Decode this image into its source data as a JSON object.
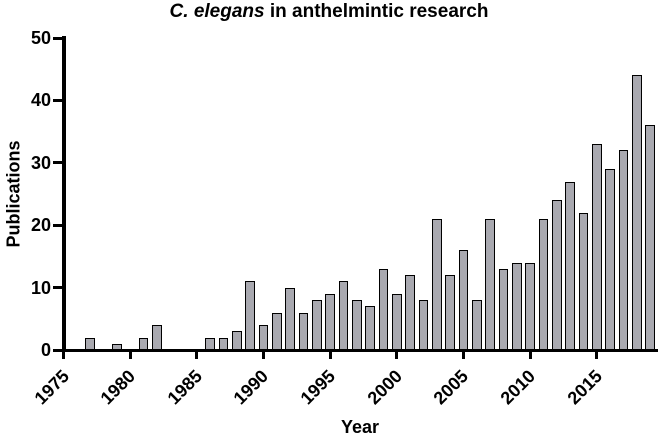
{
  "title": {
    "species": "C. elegans",
    "rest": " in anthelmintic research"
  },
  "axes": {
    "x_label": "Year",
    "y_label": "Publications"
  },
  "chart_data": {
    "type": "bar",
    "title": "C. elegans in anthelmintic research",
    "xlabel": "Year",
    "ylabel": "Publications",
    "ylim": [
      0,
      50
    ],
    "yticks": [
      0,
      10,
      20,
      30,
      40,
      50
    ],
    "xticks": [
      1975,
      1980,
      1985,
      1990,
      1995,
      2000,
      2005,
      2010,
      2015
    ],
    "grid": false,
    "legend": "none",
    "bar_fill": "#a9a9b0",
    "bar_stroke": "#000000",
    "categories": [
      1975,
      1976,
      1977,
      1978,
      1979,
      1980,
      1981,
      1982,
      1983,
      1984,
      1985,
      1986,
      1987,
      1988,
      1989,
      1990,
      1991,
      1992,
      1993,
      1994,
      1995,
      1996,
      1997,
      1998,
      1999,
      2000,
      2001,
      2002,
      2003,
      2004,
      2005,
      2006,
      2007,
      2008,
      2009,
      2010,
      2011,
      2012,
      2013,
      2014,
      2015,
      2016,
      2017,
      2018,
      2019
    ],
    "values": [
      0,
      0,
      2,
      0,
      1,
      0,
      2,
      4,
      0,
      0,
      0,
      2,
      2,
      3,
      11,
      4,
      6,
      10,
      6,
      8,
      9,
      11,
      8,
      7,
      13,
      9,
      12,
      8,
      21,
      12,
      16,
      8,
      21,
      13,
      14,
      14,
      21,
      24,
      27,
      22,
      33,
      29,
      32,
      44,
      36
    ]
  }
}
